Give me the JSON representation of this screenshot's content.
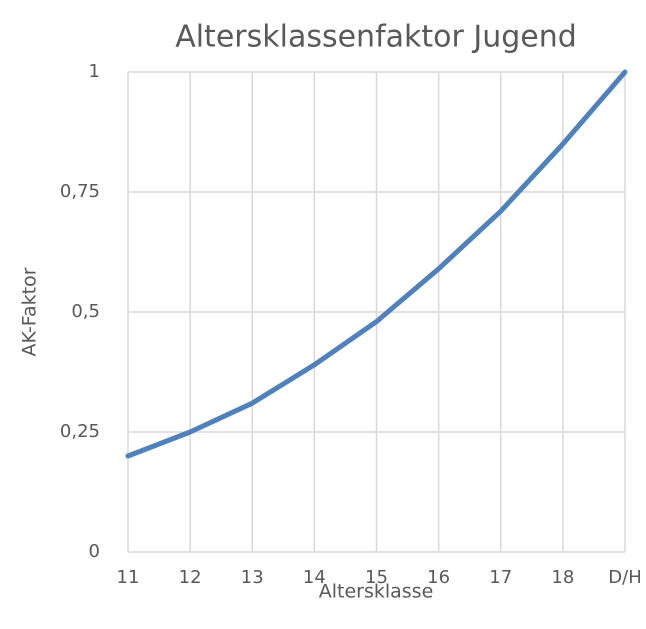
{
  "chart_data": {
    "type": "line",
    "title": "Altersklassenfaktor Jugend",
    "x_label": "Altersklasse",
    "y_label": "AK-Faktor",
    "categories": [
      "11",
      "12",
      "13",
      "14",
      "15",
      "16",
      "17",
      "18",
      "D/H"
    ],
    "series": [
      {
        "name": "AK-Faktor",
        "color": "#4f81bd",
        "values": [
          0.2,
          0.25,
          0.31,
          0.39,
          0.48,
          0.59,
          0.71,
          0.85,
          1
        ]
      }
    ],
    "ylim": [
      0,
      1
    ],
    "yticks": [
      0,
      {
        "value": 0.25,
        "label": "0,25"
      },
      {
        "value": 0.5,
        "label": "0,5"
      },
      {
        "value": 0.75,
        "label": "0,75"
      },
      1
    ],
    "grid": true
  }
}
